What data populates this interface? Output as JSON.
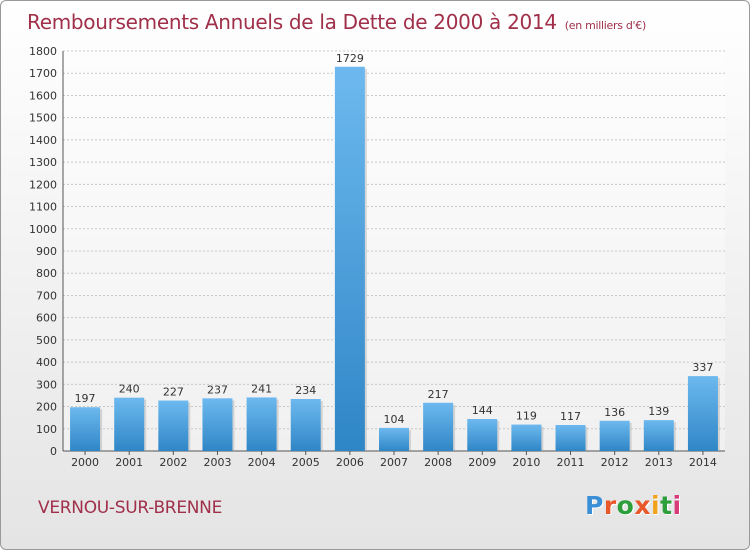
{
  "colors": {
    "title": "#a0304a",
    "bar_top": "#6db9ef",
    "bar_bottom": "#2f86c6",
    "logo_letters": [
      "#3a8fd6",
      "#e8582b",
      "#2c9e3a",
      "#e8582b",
      "#f2a21c",
      "#2c9e3a",
      "#d83a7a"
    ]
  },
  "logo": {
    "text": "Proxiti",
    "letters": [
      "P",
      "r",
      "o",
      "x",
      "i",
      "t",
      "i"
    ]
  },
  "commune": "VERNOU-SUR-BRENNE",
  "chart_data": {
    "type": "bar",
    "title": "Remboursements Annuels de la Dette de 2000 à 2014",
    "subtitle": "(en milliers d'€)",
    "xlabel": "",
    "ylabel": "",
    "categories": [
      "2000",
      "2001",
      "2002",
      "2003",
      "2004",
      "2005",
      "2006",
      "2007",
      "2008",
      "2009",
      "2010",
      "2011",
      "2012",
      "2013",
      "2014"
    ],
    "values": [
      197,
      240,
      227,
      237,
      241,
      234,
      1729,
      104,
      217,
      144,
      119,
      117,
      136,
      139,
      337
    ],
    "data_labels": [
      "197",
      "240",
      "227",
      "237",
      "241",
      "234",
      "1729",
      "104",
      "217",
      "144",
      "119",
      "117",
      "136",
      "139",
      "337"
    ],
    "ylim": [
      0,
      1800
    ],
    "yticks": [
      0,
      100,
      200,
      300,
      400,
      500,
      600,
      700,
      800,
      900,
      1000,
      1100,
      1200,
      1300,
      1400,
      1500,
      1600,
      1700,
      1800
    ],
    "ytick_labels": [
      "0",
      "100",
      "200",
      "300",
      "400",
      "500",
      "600",
      "700",
      "800",
      "900",
      "1000",
      "1100",
      "1200",
      "1300",
      "1400",
      "1500",
      "1600",
      "1700",
      "1800"
    ],
    "grid": true,
    "legend": "none"
  }
}
